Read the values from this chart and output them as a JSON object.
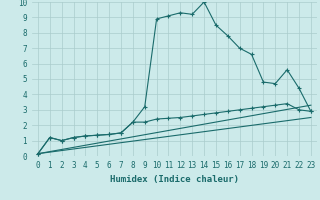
{
  "xlabel": "Humidex (Indice chaleur)",
  "background_color": "#cceaea",
  "grid_color": "#aacccc",
  "line_color": "#1a6b6b",
  "xlim": [
    -0.5,
    23.5
  ],
  "ylim": [
    0,
    10
  ],
  "xticks": [
    0,
    1,
    2,
    3,
    4,
    5,
    6,
    7,
    8,
    9,
    10,
    11,
    12,
    13,
    14,
    15,
    16,
    17,
    18,
    19,
    20,
    21,
    22,
    23
  ],
  "yticks": [
    0,
    1,
    2,
    3,
    4,
    5,
    6,
    7,
    8,
    9,
    10
  ],
  "line1_x": [
    0,
    1,
    2,
    3,
    4,
    5,
    6,
    7,
    8,
    9,
    10,
    11,
    12,
    13,
    14,
    15,
    16,
    17,
    18,
    19,
    20,
    21,
    22,
    23
  ],
  "line1_y": [
    0.15,
    1.2,
    1.0,
    1.2,
    1.3,
    1.35,
    1.4,
    1.5,
    2.2,
    3.2,
    8.9,
    9.1,
    9.3,
    9.2,
    10.0,
    8.5,
    7.8,
    7.0,
    6.6,
    4.8,
    4.7,
    5.6,
    4.4,
    2.9
  ],
  "line2_x": [
    0,
    1,
    2,
    3,
    4,
    5,
    6,
    7,
    8,
    9,
    10,
    11,
    12,
    13,
    14,
    15,
    16,
    17,
    18,
    19,
    20,
    21,
    22,
    23
  ],
  "line2_y": [
    0.15,
    1.2,
    1.0,
    1.2,
    1.3,
    1.35,
    1.4,
    1.5,
    2.2,
    2.2,
    2.4,
    2.45,
    2.5,
    2.6,
    2.7,
    2.8,
    2.9,
    3.0,
    3.1,
    3.2,
    3.3,
    3.4,
    3.0,
    2.9
  ],
  "line3_x": [
    0,
    23
  ],
  "line3_y": [
    0.15,
    3.3
  ],
  "line4_x": [
    0,
    23
  ],
  "line4_y": [
    0.15,
    2.5
  ]
}
